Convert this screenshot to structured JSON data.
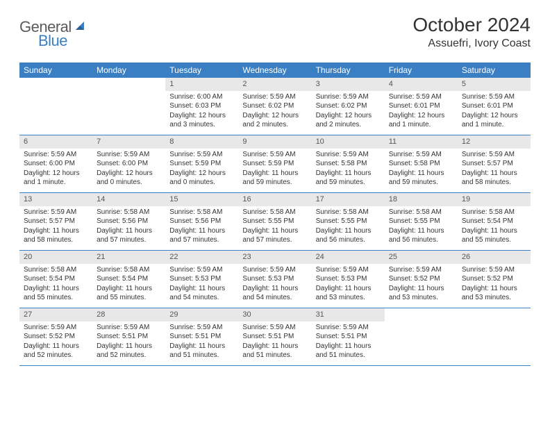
{
  "logo": {
    "text1": "General",
    "text2": "Blue"
  },
  "title": "October 2024",
  "location": "Assuefri, Ivory Coast",
  "colors": {
    "header_bg": "#3a7fc4",
    "header_text": "#ffffff",
    "daynum_bg": "#e8e8e8",
    "border": "#3a7fc4",
    "text": "#333333",
    "page_bg": "#ffffff"
  },
  "day_headers": [
    "Sunday",
    "Monday",
    "Tuesday",
    "Wednesday",
    "Thursday",
    "Friday",
    "Saturday"
  ],
  "weeks": [
    [
      {
        "empty": true
      },
      {
        "empty": true
      },
      {
        "num": "1",
        "sunrise": "Sunrise: 6:00 AM",
        "sunset": "Sunset: 6:03 PM",
        "daylight": "Daylight: 12 hours and 3 minutes."
      },
      {
        "num": "2",
        "sunrise": "Sunrise: 5:59 AM",
        "sunset": "Sunset: 6:02 PM",
        "daylight": "Daylight: 12 hours and 2 minutes."
      },
      {
        "num": "3",
        "sunrise": "Sunrise: 5:59 AM",
        "sunset": "Sunset: 6:02 PM",
        "daylight": "Daylight: 12 hours and 2 minutes."
      },
      {
        "num": "4",
        "sunrise": "Sunrise: 5:59 AM",
        "sunset": "Sunset: 6:01 PM",
        "daylight": "Daylight: 12 hours and 1 minute."
      },
      {
        "num": "5",
        "sunrise": "Sunrise: 5:59 AM",
        "sunset": "Sunset: 6:01 PM",
        "daylight": "Daylight: 12 hours and 1 minute."
      }
    ],
    [
      {
        "num": "6",
        "sunrise": "Sunrise: 5:59 AM",
        "sunset": "Sunset: 6:00 PM",
        "daylight": "Daylight: 12 hours and 1 minute."
      },
      {
        "num": "7",
        "sunrise": "Sunrise: 5:59 AM",
        "sunset": "Sunset: 6:00 PM",
        "daylight": "Daylight: 12 hours and 0 minutes."
      },
      {
        "num": "8",
        "sunrise": "Sunrise: 5:59 AM",
        "sunset": "Sunset: 5:59 PM",
        "daylight": "Daylight: 12 hours and 0 minutes."
      },
      {
        "num": "9",
        "sunrise": "Sunrise: 5:59 AM",
        "sunset": "Sunset: 5:59 PM",
        "daylight": "Daylight: 11 hours and 59 minutes."
      },
      {
        "num": "10",
        "sunrise": "Sunrise: 5:59 AM",
        "sunset": "Sunset: 5:58 PM",
        "daylight": "Daylight: 11 hours and 59 minutes."
      },
      {
        "num": "11",
        "sunrise": "Sunrise: 5:59 AM",
        "sunset": "Sunset: 5:58 PM",
        "daylight": "Daylight: 11 hours and 59 minutes."
      },
      {
        "num": "12",
        "sunrise": "Sunrise: 5:59 AM",
        "sunset": "Sunset: 5:57 PM",
        "daylight": "Daylight: 11 hours and 58 minutes."
      }
    ],
    [
      {
        "num": "13",
        "sunrise": "Sunrise: 5:59 AM",
        "sunset": "Sunset: 5:57 PM",
        "daylight": "Daylight: 11 hours and 58 minutes."
      },
      {
        "num": "14",
        "sunrise": "Sunrise: 5:58 AM",
        "sunset": "Sunset: 5:56 PM",
        "daylight": "Daylight: 11 hours and 57 minutes."
      },
      {
        "num": "15",
        "sunrise": "Sunrise: 5:58 AM",
        "sunset": "Sunset: 5:56 PM",
        "daylight": "Daylight: 11 hours and 57 minutes."
      },
      {
        "num": "16",
        "sunrise": "Sunrise: 5:58 AM",
        "sunset": "Sunset: 5:55 PM",
        "daylight": "Daylight: 11 hours and 57 minutes."
      },
      {
        "num": "17",
        "sunrise": "Sunrise: 5:58 AM",
        "sunset": "Sunset: 5:55 PM",
        "daylight": "Daylight: 11 hours and 56 minutes."
      },
      {
        "num": "18",
        "sunrise": "Sunrise: 5:58 AM",
        "sunset": "Sunset: 5:55 PM",
        "daylight": "Daylight: 11 hours and 56 minutes."
      },
      {
        "num": "19",
        "sunrise": "Sunrise: 5:58 AM",
        "sunset": "Sunset: 5:54 PM",
        "daylight": "Daylight: 11 hours and 55 minutes."
      }
    ],
    [
      {
        "num": "20",
        "sunrise": "Sunrise: 5:58 AM",
        "sunset": "Sunset: 5:54 PM",
        "daylight": "Daylight: 11 hours and 55 minutes."
      },
      {
        "num": "21",
        "sunrise": "Sunrise: 5:58 AM",
        "sunset": "Sunset: 5:54 PM",
        "daylight": "Daylight: 11 hours and 55 minutes."
      },
      {
        "num": "22",
        "sunrise": "Sunrise: 5:59 AM",
        "sunset": "Sunset: 5:53 PM",
        "daylight": "Daylight: 11 hours and 54 minutes."
      },
      {
        "num": "23",
        "sunrise": "Sunrise: 5:59 AM",
        "sunset": "Sunset: 5:53 PM",
        "daylight": "Daylight: 11 hours and 54 minutes."
      },
      {
        "num": "24",
        "sunrise": "Sunrise: 5:59 AM",
        "sunset": "Sunset: 5:53 PM",
        "daylight": "Daylight: 11 hours and 53 minutes."
      },
      {
        "num": "25",
        "sunrise": "Sunrise: 5:59 AM",
        "sunset": "Sunset: 5:52 PM",
        "daylight": "Daylight: 11 hours and 53 minutes."
      },
      {
        "num": "26",
        "sunrise": "Sunrise: 5:59 AM",
        "sunset": "Sunset: 5:52 PM",
        "daylight": "Daylight: 11 hours and 53 minutes."
      }
    ],
    [
      {
        "num": "27",
        "sunrise": "Sunrise: 5:59 AM",
        "sunset": "Sunset: 5:52 PM",
        "daylight": "Daylight: 11 hours and 52 minutes."
      },
      {
        "num": "28",
        "sunrise": "Sunrise: 5:59 AM",
        "sunset": "Sunset: 5:51 PM",
        "daylight": "Daylight: 11 hours and 52 minutes."
      },
      {
        "num": "29",
        "sunrise": "Sunrise: 5:59 AM",
        "sunset": "Sunset: 5:51 PM",
        "daylight": "Daylight: 11 hours and 51 minutes."
      },
      {
        "num": "30",
        "sunrise": "Sunrise: 5:59 AM",
        "sunset": "Sunset: 5:51 PM",
        "daylight": "Daylight: 11 hours and 51 minutes."
      },
      {
        "num": "31",
        "sunrise": "Sunrise: 5:59 AM",
        "sunset": "Sunset: 5:51 PM",
        "daylight": "Daylight: 11 hours and 51 minutes."
      },
      {
        "empty": true
      },
      {
        "empty": true
      }
    ]
  ]
}
